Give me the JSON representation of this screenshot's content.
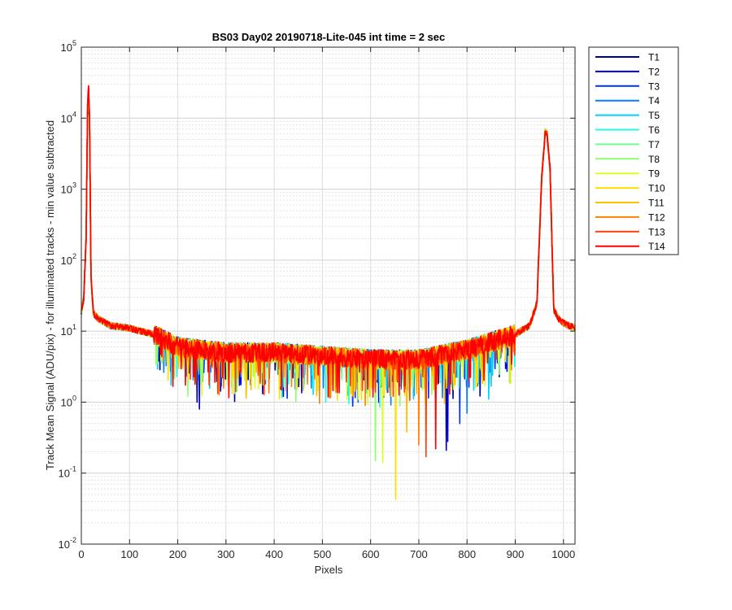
{
  "chart_data": {
    "type": "line",
    "title": "BS03 Day02 20190718-Lite-045 int time = 2 sec",
    "xlabel": "Pixels",
    "ylabel": "Track Mean Signal (ADU/pix) - for illuminated tracks - min value subtracted",
    "xlim": [
      0,
      1024
    ],
    "ylim": [
      0.01,
      100000
    ],
    "yscale": "log",
    "grid": true,
    "minor_grid": true,
    "legend_position": "outside-top-right",
    "x_ticks": [
      0,
      100,
      200,
      300,
      400,
      500,
      600,
      700,
      800,
      900,
      1000
    ],
    "x_tick_labels": [
      "0",
      "100",
      "200",
      "300",
      "400",
      "500",
      "600",
      "700",
      "800",
      "900",
      "1000"
    ],
    "y_ticks": [
      0.01,
      0.1,
      1,
      10,
      100,
      1000,
      10000,
      100000
    ],
    "y_tick_bases": [
      "10",
      "10",
      "10",
      "10",
      "10",
      "10",
      "10",
      "10"
    ],
    "y_tick_exps": [
      "-2",
      "-1",
      "0",
      "1",
      "2",
      "3",
      "4",
      "5"
    ],
    "envelope_note_free_x": [
      0,
      5,
      12,
      15,
      18,
      22,
      30,
      50,
      100,
      150,
      200,
      300,
      400,
      500,
      600,
      700,
      800,
      900,
      940,
      955,
      962,
      968,
      975,
      985,
      1000,
      1024
    ],
    "series": [
      {
        "name": "T1",
        "color": "#00008f"
      },
      {
        "name": "T2",
        "color": "#0000df"
      },
      {
        "name": "T3",
        "color": "#0030ff"
      },
      {
        "name": "T4",
        "color": "#0080ff"
      },
      {
        "name": "T5",
        "color": "#00d0ff"
      },
      {
        "name": "T6",
        "color": "#20ffdf"
      },
      {
        "name": "T7",
        "color": "#70ff8f"
      },
      {
        "name": "T8",
        "color": "#90ff6f"
      },
      {
        "name": "T9",
        "color": "#dfff20"
      },
      {
        "name": "T10",
        "color": "#ffdf00"
      },
      {
        "name": "T11",
        "color": "#ffc000"
      },
      {
        "name": "T12",
        "color": "#ff8000"
      },
      {
        "name": "T13",
        "color": "#ff4000"
      },
      {
        "name": "T14",
        "color": "#ff0000"
      }
    ],
    "profile": {
      "x": [
        0,
        5,
        10,
        13,
        15,
        17,
        20,
        25,
        35,
        60,
        100,
        150,
        200,
        300,
        400,
        500,
        600,
        700,
        800,
        900,
        930,
        945,
        955,
        962,
        966,
        972,
        980,
        990,
        1000,
        1024
      ],
      "y": [
        18,
        30,
        200,
        14000,
        25000,
        9000,
        60,
        18,
        15,
        12,
        11,
        9,
        6,
        5,
        5,
        4.5,
        4,
        4,
        5.5,
        9,
        12,
        25,
        1500,
        6500,
        6000,
        2000,
        20,
        15,
        13,
        11
      ]
    },
    "dips": [
      {
        "x": 240,
        "y": 1.0
      },
      {
        "x": 245,
        "y": 0.8
      },
      {
        "x": 290,
        "y": 1.9
      },
      {
        "x": 382,
        "y": 1.8
      },
      {
        "x": 462,
        "y": 1.8
      },
      {
        "x": 555,
        "y": 0.95
      },
      {
        "x": 580,
        "y": 1.5
      },
      {
        "x": 610,
        "y": 0.15
      },
      {
        "x": 625,
        "y": 0.14
      },
      {
        "x": 652,
        "y": 0.043
      },
      {
        "x": 675,
        "y": 0.38
      },
      {
        "x": 700,
        "y": 0.25
      },
      {
        "x": 715,
        "y": 0.17
      },
      {
        "x": 735,
        "y": 0.22
      },
      {
        "x": 757,
        "y": 0.21
      },
      {
        "x": 760,
        "y": 0.28
      },
      {
        "x": 785,
        "y": 0.5
      },
      {
        "x": 800,
        "y": 0.7
      },
      {
        "x": 845,
        "y": 1.1
      }
    ]
  }
}
